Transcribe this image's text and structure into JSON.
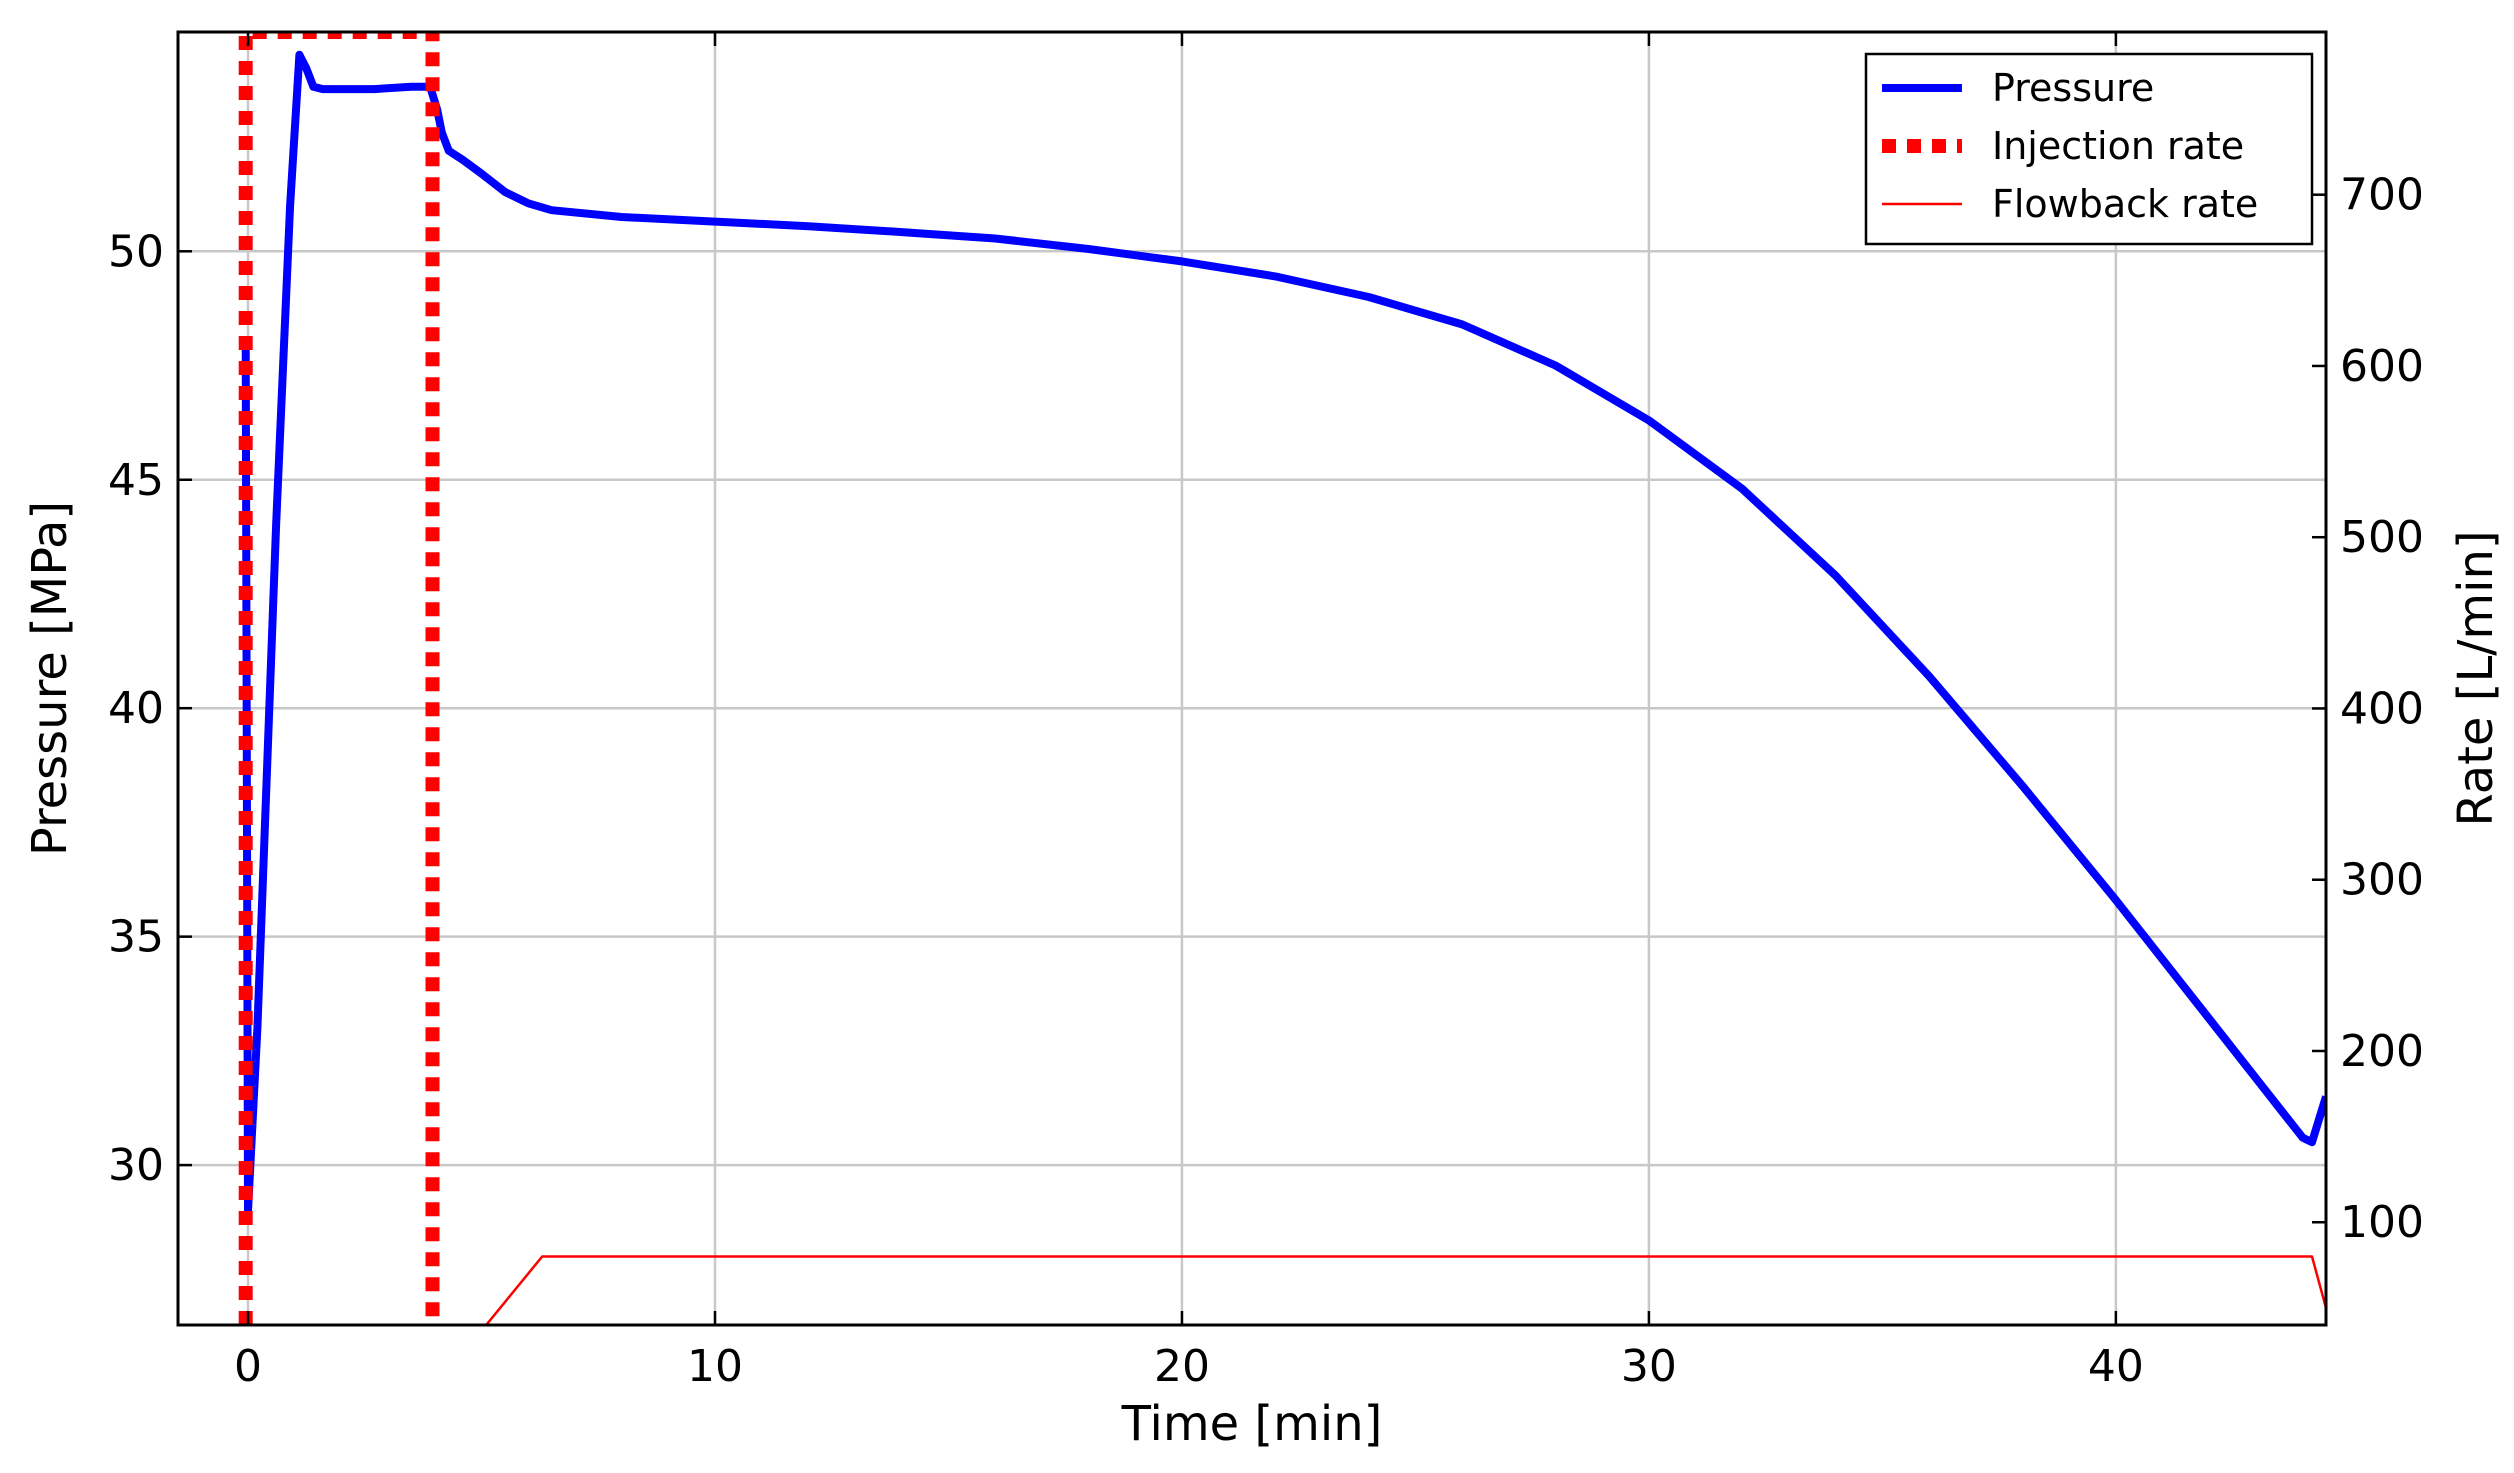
{
  "chart_data": {
    "type": "line",
    "title": "",
    "xlabel": "Time [min]",
    "ylabel": "Pressure [MPa]",
    "ylabel_right": "Rate [L/min]",
    "xlim": [
      -1.5,
      44.5
    ],
    "ylim": [
      26.5,
      54.8
    ],
    "ylim_right": [
      40,
      795
    ],
    "grid": true,
    "legend_position": "top-right",
    "x_ticks": [
      0,
      10,
      20,
      30,
      40
    ],
    "y_ticks": [
      30,
      35,
      40,
      45,
      50
    ],
    "y_ticks_right": [
      100,
      200,
      300,
      400,
      500,
      600,
      700
    ],
    "series": [
      {
        "name": "Pressure",
        "axis": "left",
        "color": "#0000ff",
        "style": "solid-thick",
        "points": [
          [
            -0.05,
            48.0
          ],
          [
            0.0,
            29.0
          ],
          [
            0.2,
            33.0
          ],
          [
            0.6,
            44.0
          ],
          [
            0.9,
            51.0
          ],
          [
            1.1,
            54.3
          ],
          [
            1.25,
            54.0
          ],
          [
            1.4,
            53.6
          ],
          [
            1.6,
            53.55
          ],
          [
            2.0,
            53.55
          ],
          [
            2.7,
            53.55
          ],
          [
            3.5,
            53.6
          ],
          [
            3.9,
            53.6
          ],
          [
            4.05,
            53.1
          ],
          [
            4.15,
            52.6
          ],
          [
            4.3,
            52.2
          ],
          [
            4.6,
            52.0
          ],
          [
            5.0,
            51.7
          ],
          [
            5.5,
            51.3
          ],
          [
            6.0,
            51.05
          ],
          [
            6.5,
            50.9
          ],
          [
            8.0,
            50.75
          ],
          [
            10.0,
            50.65
          ],
          [
            12.0,
            50.55
          ],
          [
            14.0,
            50.42
          ],
          [
            16.0,
            50.28
          ],
          [
            18.0,
            50.05
          ],
          [
            20.0,
            49.78
          ],
          [
            22.0,
            49.45
          ],
          [
            24.0,
            49.0
          ],
          [
            26.0,
            48.4
          ],
          [
            28.0,
            47.5
          ],
          [
            30.0,
            46.3
          ],
          [
            32.0,
            44.8
          ],
          [
            34.0,
            42.9
          ],
          [
            36.0,
            40.7
          ],
          [
            38.0,
            38.3
          ],
          [
            40.0,
            35.8
          ],
          [
            42.0,
            33.2
          ],
          [
            43.0,
            31.9
          ],
          [
            44.0,
            30.6
          ],
          [
            44.2,
            30.5
          ],
          [
            44.5,
            31.5
          ]
        ]
      },
      {
        "name": "Injection rate",
        "axis": "right",
        "color": "#ff0000",
        "style": "dotted-thick",
        "points": [
          [
            -0.05,
            40
          ],
          [
            -0.05,
            795
          ],
          [
            3.95,
            795
          ],
          [
            3.95,
            40
          ]
        ]
      },
      {
        "name": "Flowback rate",
        "axis": "right",
        "color": "#ff0000",
        "style": "solid-thin",
        "points": [
          [
            5.1,
            40
          ],
          [
            6.3,
            80
          ],
          [
            44.2,
            80
          ],
          [
            44.5,
            50
          ]
        ]
      }
    ]
  }
}
